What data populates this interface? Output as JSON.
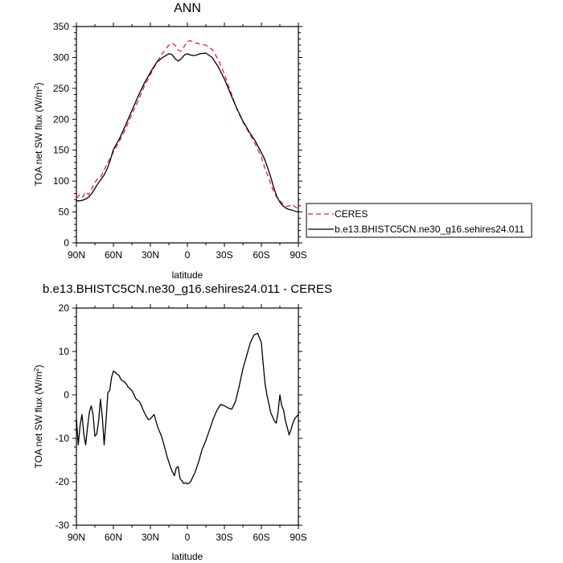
{
  "chart_data": [
    {
      "type": "line",
      "title": "ANN",
      "xlabel": "latitude",
      "ylabel": "TOA net SW flux (W/m",
      "ylabel_sup": "2",
      "ylabel_close": ")",
      "xlim": [
        90,
        -90
      ],
      "ylim": [
        0,
        350
      ],
      "yticks": [
        0,
        50,
        100,
        150,
        200,
        250,
        300,
        350
      ],
      "xticks": [
        {
          "value": 90,
          "label": "90N"
        },
        {
          "value": 60,
          "label": "60N"
        },
        {
          "value": 30,
          "label": "30N"
        },
        {
          "value": 0,
          "label": "0"
        },
        {
          "value": -30,
          "label": "30S"
        },
        {
          "value": -60,
          "label": "60S"
        },
        {
          "value": -90,
          "label": "90S"
        }
      ],
      "legend_position": "right",
      "series": [
        {
          "name": "CERES",
          "color": "#e8202a",
          "dash": "dashed",
          "x": [
            90,
            87.5,
            85,
            82.5,
            80,
            77.5,
            75,
            72.5,
            70,
            67.5,
            65,
            62.5,
            60,
            55,
            50,
            45,
            40,
            35,
            30,
            25,
            20,
            17.5,
            15,
            12.5,
            10,
            7.5,
            5,
            2.5,
            0,
            -2.5,
            -5,
            -7.5,
            -10,
            -15,
            -20,
            -25,
            -30,
            -35,
            -40,
            -45,
            -50,
            -55,
            -60,
            -62.5,
            -65,
            -67.5,
            -70,
            -72.5,
            -75,
            -77.5,
            -80,
            -82.5,
            -85,
            -87.5,
            -90
          ],
          "y": [
            72,
            78,
            74,
            82,
            78,
            88,
            98,
            104,
            108,
            118,
            128,
            138,
            147,
            165,
            185,
            208,
            230,
            253,
            272,
            292,
            307,
            314,
            320,
            323,
            320,
            312,
            310,
            318,
            326,
            327,
            325,
            323,
            322,
            320,
            313,
            297,
            273,
            245,
            217,
            196,
            178,
            160,
            139,
            123,
            110,
            96,
            83,
            74,
            68,
            63,
            59,
            60,
            62,
            58,
            55
          ]
        },
        {
          "name": "b.e13.BHISTC5CN.ne30_g16.sehires24.011",
          "color": "#000000",
          "dash": "solid",
          "x": [
            90,
            87.5,
            85,
            82.5,
            80,
            77.5,
            75,
            72.5,
            70,
            67.5,
            65,
            62.5,
            60,
            55,
            50,
            45,
            40,
            35,
            30,
            25,
            20,
            17.5,
            15,
            12.5,
            10,
            7.5,
            5,
            2.5,
            0,
            -2.5,
            -5,
            -7.5,
            -10,
            -15,
            -20,
            -25,
            -30,
            -35,
            -40,
            -45,
            -50,
            -55,
            -60,
            -62.5,
            -65,
            -67.5,
            -70,
            -72.5,
            -75,
            -77.5,
            -80,
            -82.5,
            -85,
            -87.5,
            -90
          ],
          "y": [
            68,
            68,
            69,
            71,
            74,
            80,
            88,
            96,
            103,
            110,
            120,
            134,
            151,
            169,
            191,
            214,
            237,
            258,
            276,
            292,
            300,
            303,
            306,
            305,
            298,
            294,
            298,
            304,
            306,
            304,
            303,
            304,
            306,
            307,
            300,
            285,
            265,
            241,
            218,
            197,
            180,
            165,
            146,
            136,
            122,
            107,
            90,
            75,
            66,
            60,
            56,
            54,
            53,
            51,
            50
          ]
        }
      ]
    },
    {
      "type": "line",
      "title": "b.e13.BHISTC5CN.ne30_g16.sehires24.011 - CERES",
      "xlabel": "latitude",
      "ylabel": "TOA net SW flux (W/m",
      "ylabel_sup": "2",
      "ylabel_close": ")",
      "xlim": [
        90,
        -90
      ],
      "ylim": [
        -30,
        20
      ],
      "yticks": [
        -30,
        -20,
        -10,
        0,
        10,
        20
      ],
      "xticks": [
        {
          "value": 90,
          "label": "90N"
        },
        {
          "value": 60,
          "label": "60N"
        },
        {
          "value": 30,
          "label": "30N"
        },
        {
          "value": 0,
          "label": "0"
        },
        {
          "value": -30,
          "label": "30S"
        },
        {
          "value": -60,
          "label": "60S"
        },
        {
          "value": -90,
          "label": "90S"
        }
      ],
      "series": [
        {
          "name": "",
          "color": "#000000",
          "dash": "solid",
          "x": [
            90,
            88.5,
            87,
            85.5,
            84,
            82.5,
            81,
            79.5,
            78,
            76.5,
            75,
            73.5,
            72,
            70.5,
            69,
            67.5,
            66,
            64.5,
            63,
            61.5,
            60,
            58.5,
            57,
            55.5,
            54,
            52.5,
            51,
            49.5,
            48,
            46.5,
            45,
            43.5,
            42,
            40.5,
            39,
            37.5,
            36,
            34.5,
            33,
            31.5,
            30,
            27,
            24,
            21,
            18,
            16.5,
            15,
            13.5,
            12,
            10.5,
            9,
            7.5,
            6,
            4.5,
            3,
            1.5,
            0,
            -1.5,
            -3,
            -4.5,
            -6,
            -9,
            -12,
            -15,
            -18,
            -21,
            -24,
            -27,
            -30,
            -33,
            -36,
            -39,
            -42,
            -45,
            -48,
            -51,
            -54,
            -57,
            -60,
            -61.5,
            -63,
            -64.5,
            -66,
            -67.5,
            -69,
            -70.5,
            -72,
            -73.5,
            -75,
            -76.5,
            -78,
            -79.5,
            -81,
            -82.5,
            -84,
            -85.5,
            -87,
            -88.5,
            -90
          ],
          "y": [
            -5.5,
            -11.5,
            -7,
            -4.5,
            -9,
            -11.5,
            -7.5,
            -4,
            -2.5,
            -4.5,
            -9.5,
            -9,
            -6,
            -1,
            -5,
            -11.5,
            -6,
            0.5,
            1,
            4,
            5.5,
            5.2,
            4.8,
            4.5,
            3.6,
            3.2,
            3.0,
            2.5,
            1.8,
            1.4,
            1.0,
            0.2,
            -0.8,
            -1.2,
            -1.5,
            -2.3,
            -3.4,
            -4.3,
            -5.1,
            -5.7,
            -5.5,
            -4.5,
            -7.5,
            -9.5,
            -12.5,
            -14.2,
            -15.5,
            -16.8,
            -17.8,
            -18.6,
            -16.8,
            -16.5,
            -19.2,
            -19.8,
            -20.4,
            -20.2,
            -20.5,
            -20.3,
            -19.8,
            -18.8,
            -18.0,
            -15.5,
            -12.5,
            -10.5,
            -8.0,
            -5.5,
            -3.5,
            -2.2,
            -2.5,
            -3.0,
            -3.3,
            -1.5,
            2.0,
            6.0,
            9.0,
            12.0,
            13.8,
            14.2,
            12.0,
            7.0,
            2.5,
            0.0,
            -2.0,
            -4.0,
            -5.0,
            -6.0,
            -6.5,
            -4.0,
            0.0,
            -2.5,
            -3.5,
            -6.0,
            -7.5,
            -9.2,
            -8.0,
            -6.5,
            -5.5,
            -5.0,
            -4.5
          ]
        }
      ]
    }
  ]
}
